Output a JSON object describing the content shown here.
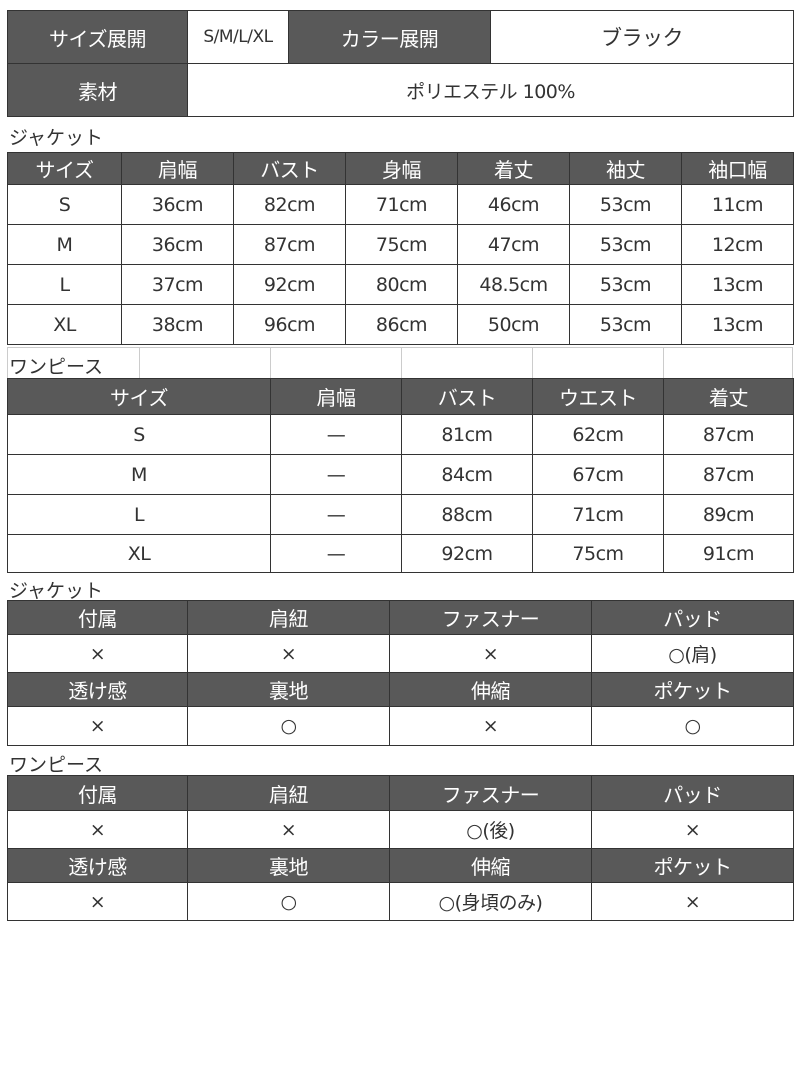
{
  "spec": {
    "size_label": "サイズ展開",
    "size_value": "S/M/L/XL",
    "color_label": "カラー展開",
    "color_value": "ブラック",
    "material_label": "素材",
    "material_value": "ポリエステル 100%"
  },
  "jacket_size": {
    "title": "ジャケット",
    "headers": [
      "サイズ",
      "肩幅",
      "バスト",
      "身幅",
      "着丈",
      "袖丈",
      "袖口幅"
    ],
    "rows": [
      [
        "S",
        "36cm",
        "82cm",
        "71cm",
        "46cm",
        "53cm",
        "11cm"
      ],
      [
        "M",
        "36cm",
        "87cm",
        "75cm",
        "47cm",
        "53cm",
        "12cm"
      ],
      [
        "L",
        "37cm",
        "92cm",
        "80cm",
        "48.5cm",
        "53cm",
        "13cm"
      ],
      [
        "XL",
        "38cm",
        "96cm",
        "86cm",
        "50cm",
        "53cm",
        "13cm"
      ]
    ]
  },
  "onepiece_size": {
    "title": "ワンピース",
    "headers": [
      "サイズ",
      "肩幅",
      "バスト",
      "ウエスト",
      "着丈"
    ],
    "rows": [
      [
        "S",
        "—",
        "81cm",
        "62cm",
        "87cm"
      ],
      [
        "M",
        "—",
        "84cm",
        "67cm",
        "87cm"
      ],
      [
        "L",
        "—",
        "88cm",
        "71cm",
        "89cm"
      ],
      [
        "XL",
        "—",
        "92cm",
        "75cm",
        "91cm"
      ]
    ]
  },
  "jacket_attr": {
    "title": "ジャケット",
    "rows": [
      [
        "付属",
        "肩紐",
        "ファスナー",
        "パッド"
      ],
      [
        "×",
        "×",
        "×",
        "○(肩)"
      ],
      [
        "透け感",
        "裏地",
        "伸縮",
        "ポケット"
      ],
      [
        "×",
        "○",
        "×",
        "○"
      ]
    ]
  },
  "onepiece_attr": {
    "title": "ワンピース",
    "rows": [
      [
        "付属",
        "肩紐",
        "ファスナー",
        "パッド"
      ],
      [
        "×",
        "×",
        "○(後)",
        "×"
      ],
      [
        "透け感",
        "裏地",
        "伸縮",
        "ポケット"
      ],
      [
        "×",
        "○",
        "○(身頃のみ)",
        "×"
      ]
    ]
  },
  "colors": {
    "header_bg": "#595959",
    "header_text": "#ffffff"
  }
}
